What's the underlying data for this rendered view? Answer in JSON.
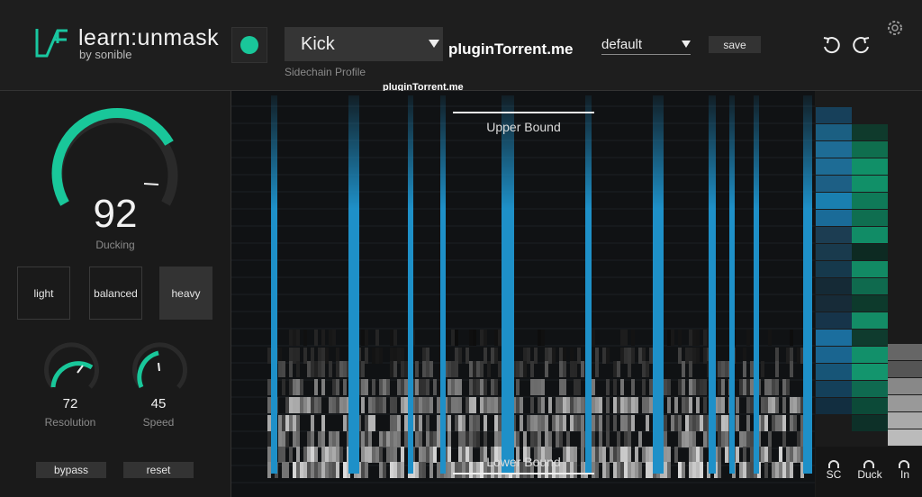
{
  "header": {
    "title": "learn:unmask",
    "brand": "by sonible",
    "profile": "Kick",
    "profile_label": "Sidechain Profile",
    "preset": "default",
    "save": "save",
    "watermark": "pluginTorrent.me",
    "watermark_small": "pluginTorrent.me"
  },
  "ducking": {
    "value": "92",
    "label": "Ducking"
  },
  "modes": [
    "light",
    "balanced",
    "heavy"
  ],
  "resolution": {
    "value": "72",
    "label": "Resolution"
  },
  "speed": {
    "value": "45",
    "label": "Speed"
  },
  "buttons": [
    "bypass",
    "reset"
  ],
  "display": {
    "upper": "Upper Bound",
    "lower": "Lower Bound"
  },
  "meters": [
    "SC",
    "Duck",
    "In"
  ]
}
